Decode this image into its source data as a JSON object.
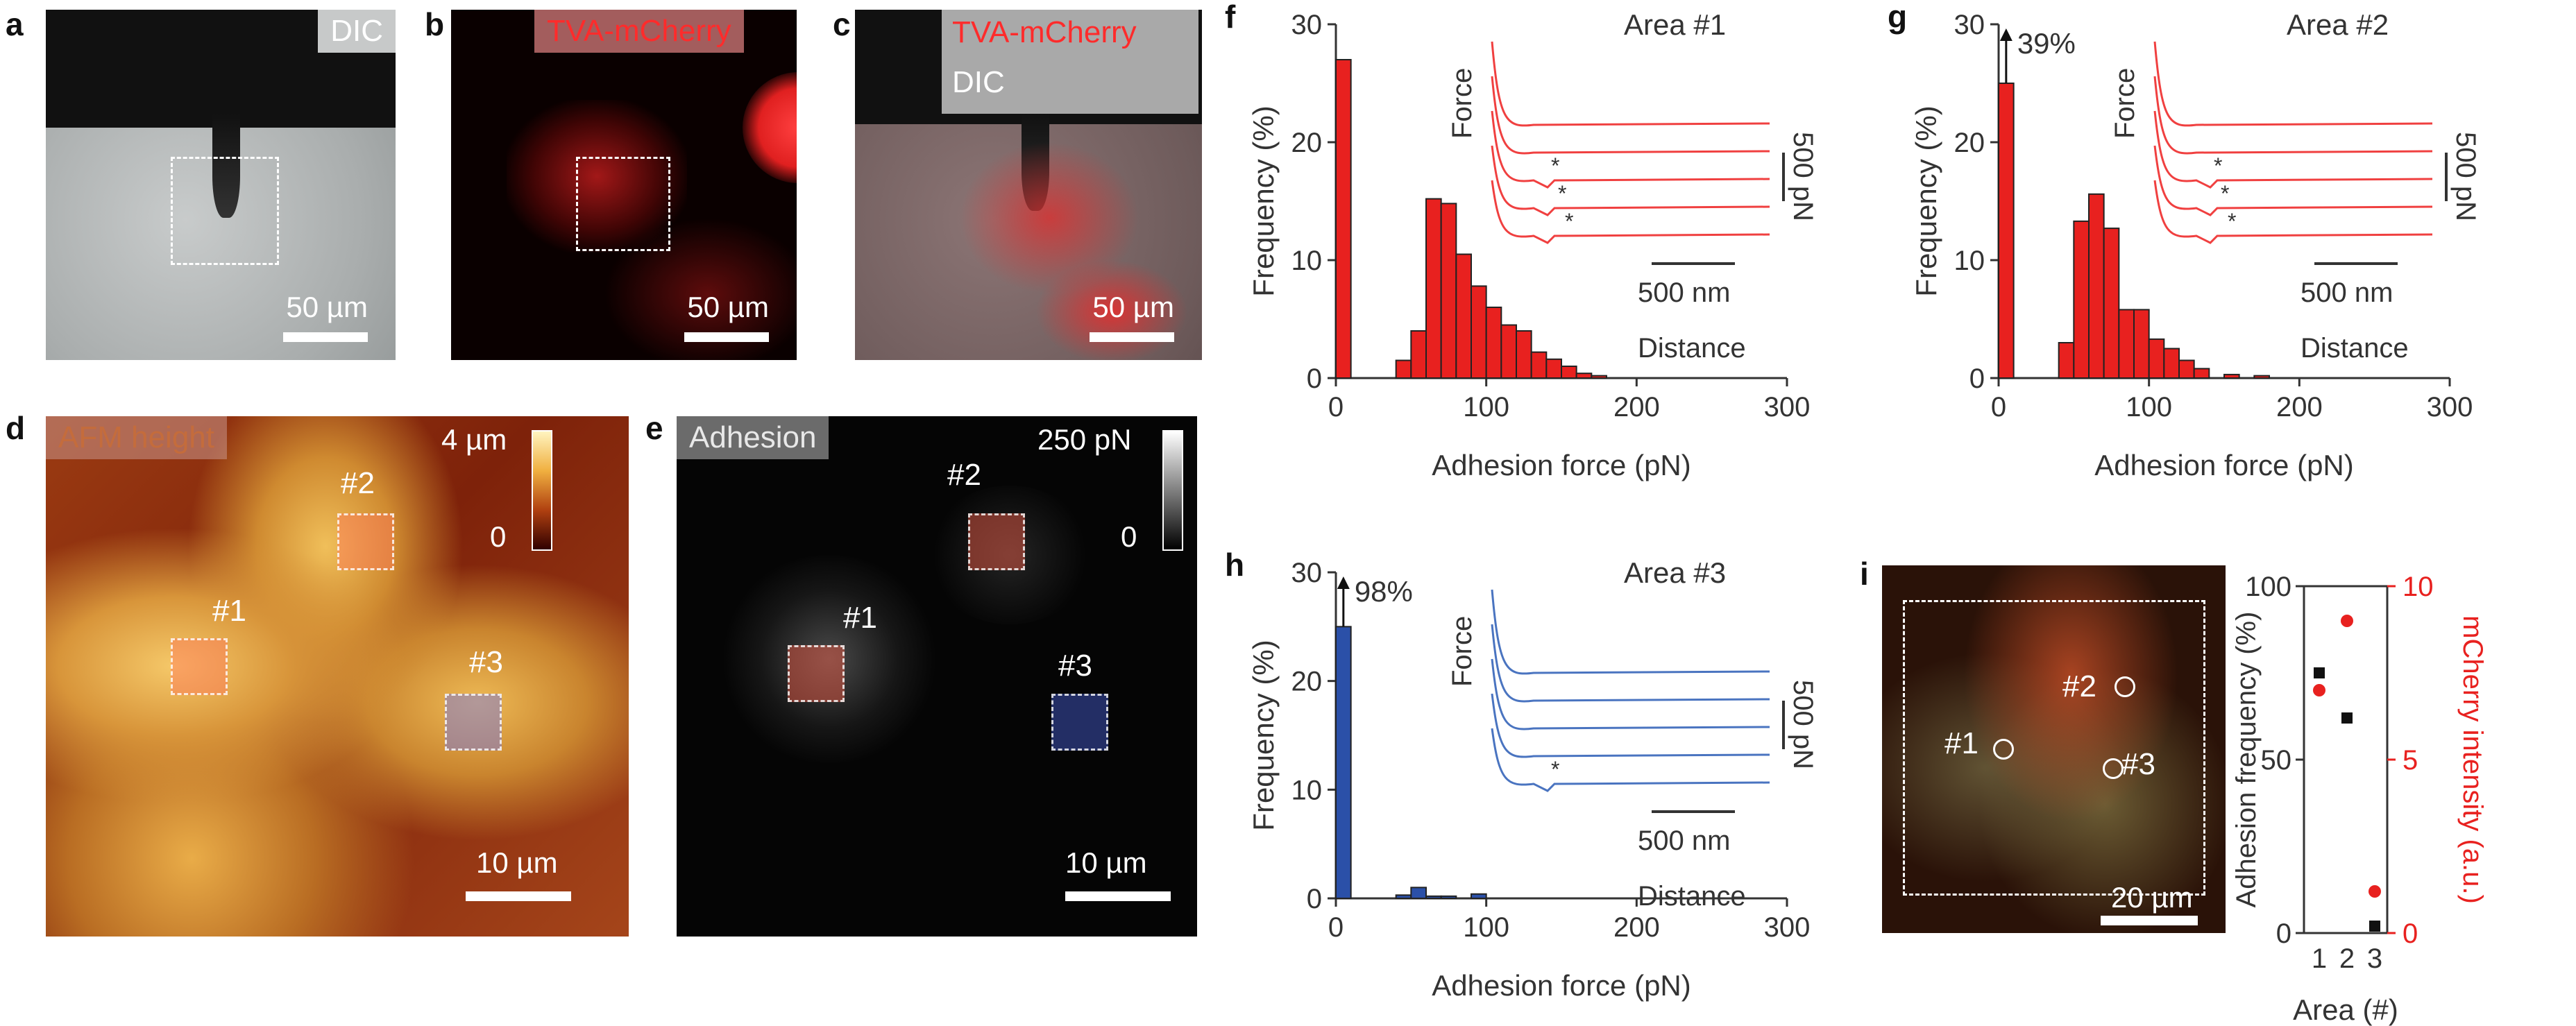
{
  "panels": {
    "a": {
      "letter": "a",
      "tag": "DIC",
      "scale": "50 µm"
    },
    "b": {
      "letter": "b",
      "tag": "TVA-mCherry",
      "scale": "50 µm"
    },
    "c": {
      "letter": "c",
      "tag1": "TVA-mCherry",
      "tag2": "DIC",
      "scale": "50 µm"
    },
    "d": {
      "letter": "d",
      "tag": "AFM height",
      "cbar_max": "4 µm",
      "cbar_min": "0",
      "scale": "10 µm",
      "rois": [
        "#1",
        "#2",
        "#3"
      ]
    },
    "e": {
      "letter": "e",
      "tag": "Adhesion",
      "cbar_max": "250 pN",
      "cbar_min": "0",
      "scale": "10 µm",
      "rois": [
        "#1",
        "#2",
        "#3"
      ]
    },
    "i_img": {
      "letter": "i",
      "scale": "20 µm",
      "rois": [
        "#1",
        "#2",
        "#3"
      ]
    }
  },
  "colors": {
    "red": "#e8211f",
    "blue": "#2b50a8",
    "curve_red": "#f04040",
    "curve_blue": "#4a74c0"
  },
  "chart_data": [
    {
      "id": "f",
      "type": "bar",
      "letter": "f",
      "bin_width": 10,
      "bins": [
        0,
        40,
        50,
        60,
        70,
        80,
        90,
        100,
        110,
        120,
        130,
        140,
        150,
        160,
        170
      ],
      "values": [
        27,
        1.5,
        4,
        15.2,
        14.8,
        10.5,
        7.8,
        6,
        4.5,
        4,
        2.2,
        1.6,
        1,
        0.4,
        0.2
      ],
      "xlim": [
        0,
        300
      ],
      "ylim": [
        0,
        30
      ],
      "xticks": [
        "0",
        "100",
        "200",
        "300"
      ],
      "yticks": [
        "0",
        "10",
        "20",
        "30"
      ],
      "xlabel": "Adhesion force (pN)",
      "ylabel": "Frequency (%)",
      "bar_color": "red",
      "inset": {
        "title": "Area #1",
        "ylabel": "Force",
        "xlabel": "Distance",
        "scale_x": "500 nm",
        "scale_y": "500 pN",
        "markers": [
          "*",
          "*",
          "*"
        ]
      }
    },
    {
      "id": "g",
      "type": "bar",
      "letter": "g",
      "bin_width": 10,
      "bins": [
        0,
        40,
        50,
        60,
        70,
        80,
        90,
        100,
        110,
        120,
        130,
        150,
        170
      ],
      "values": [
        25,
        3,
        13.3,
        15.6,
        12.7,
        5.8,
        5.8,
        3.3,
        2.5,
        1.5,
        0.8,
        0.3,
        0.2
      ],
      "xlim": [
        0,
        300
      ],
      "ylim": [
        0,
        30
      ],
      "xticks": [
        "0",
        "100",
        "200",
        "300"
      ],
      "yticks": [
        "0",
        "10",
        "20",
        "30"
      ],
      "xlabel": "Adhesion force (pN)",
      "ylabel": "Frequency (%)",
      "bar_color": "red",
      "annotation": "39%",
      "inset": {
        "title": "Area #2",
        "ylabel": "Force",
        "xlabel": "Distance",
        "scale_x": "500 nm",
        "scale_y": "500 pN",
        "markers": [
          "*",
          "*",
          "*"
        ]
      }
    },
    {
      "id": "h",
      "type": "bar",
      "letter": "h",
      "bin_width": 10,
      "bins": [
        0,
        40,
        50,
        60,
        70,
        90
      ],
      "values": [
        25,
        0.3,
        1,
        0.2,
        0.2,
        0.4
      ],
      "xlim": [
        0,
        300
      ],
      "ylim": [
        0,
        30
      ],
      "xticks": [
        "0",
        "100",
        "200",
        "300"
      ],
      "yticks": [
        "0",
        "10",
        "20",
        "30"
      ],
      "xlabel": "Adhesion force (pN)",
      "ylabel": "Frequency (%)",
      "bar_color": "blue",
      "annotation": "98%",
      "inset": {
        "title": "Area #3",
        "ylabel": "Force",
        "xlabel": "Distance",
        "scale_x": "500 nm",
        "scale_y": "500 pN",
        "markers": [
          "*"
        ]
      }
    },
    {
      "id": "i",
      "type": "scatter",
      "letter": "i",
      "x": [
        1,
        2,
        3
      ],
      "series": [
        {
          "name": "Adhesion frequency",
          "axis": "left",
          "color": "#111111",
          "values": [
            75,
            62,
            2
          ]
        },
        {
          "name": "mCherry intensity",
          "axis": "right",
          "color": "#e8211f",
          "values": [
            7,
            9,
            1.2
          ]
        }
      ],
      "xticks": [
        "1",
        "2",
        "3"
      ],
      "ylim_left": [
        0,
        100
      ],
      "yticks_left": [
        "0",
        "50",
        "100"
      ],
      "ylim_right": [
        0,
        10
      ],
      "yticks_right": [
        "0",
        "5",
        "10"
      ],
      "xlabel": "Area (#)",
      "ylabel_left": "Adhesion frequency (%)",
      "ylabel_right": "mCherry intensity (a.u.)"
    }
  ]
}
